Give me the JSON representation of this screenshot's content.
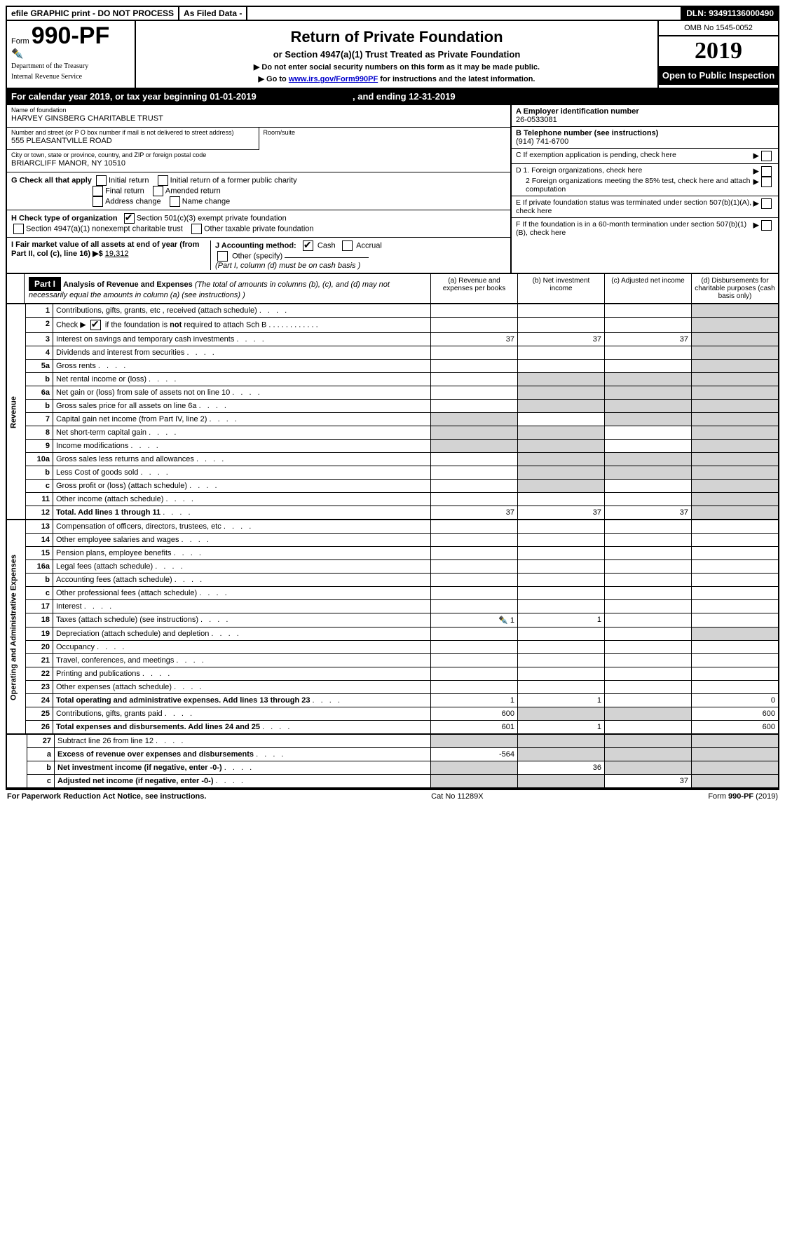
{
  "topbar": {
    "efile": "efile GRAPHIC print - DO NOT PROCESS",
    "asfiled": "As Filed Data -",
    "dln_label": "DLN:",
    "dln": "93491136000490"
  },
  "header": {
    "form_label": "Form",
    "form_no": "990-PF",
    "dept1": "Department of the Treasury",
    "dept2": "Internal Revenue Service",
    "title": "Return of Private Foundation",
    "sub": "or Section 4947(a)(1) Trust Treated as Private Foundation",
    "note1": "▶ Do not enter social security numbers on this form as it may be made public.",
    "note2_pre": "▶ Go to ",
    "note2_link": "www.irs.gov/Form990PF",
    "note2_post": " for instructions and the latest information.",
    "omb": "OMB No 1545-0052",
    "year": "2019",
    "open": "Open to Public Inspection"
  },
  "cy": {
    "text_a": "For calendar year 2019, or tax year beginning ",
    "begin": "01-01-2019",
    "text_b": " , and ending ",
    "end": "12-31-2019"
  },
  "info": {
    "name_label": "Name of foundation",
    "name": "HARVEY GINSBERG CHARITABLE TRUST",
    "street_label": "Number and street (or P O  box number if mail is not delivered to street address)",
    "street": "555 PLEASANTVILLE ROAD",
    "room_label": "Room/suite",
    "city_label": "City or town, state or province, country, and ZIP or foreign postal code",
    "city": "BRIARCLIFF MANOR, NY  10510",
    "ein_label": "A Employer identification number",
    "ein": "26-0533081",
    "tel_label": "B Telephone number (see instructions)",
    "tel": "(914) 741-6700",
    "c_label": "C If exemption application is pending, check here",
    "d1": "D 1. Foreign organizations, check here",
    "d2": "2 Foreign organizations meeting the 85% test, check here and attach computation",
    "e": "E  If private foundation status was terminated under section 507(b)(1)(A), check here",
    "f": "F  If the foundation is in a 60-month termination under section 507(b)(1)(B), check here",
    "g": "G Check all that apply",
    "g_opts": [
      "Initial return",
      "Initial return of a former public charity",
      "Final return",
      "Amended return",
      "Address change",
      "Name change"
    ],
    "h": "H Check type of organization",
    "h1": "Section 501(c)(3) exempt private foundation",
    "h2": "Section 4947(a)(1) nonexempt charitable trust",
    "h3": "Other taxable private foundation",
    "i_label": "I Fair market value of all assets at end of year (from Part II, col  (c), line 16) ▶$",
    "i_val": "19,312",
    "j_label": "J Accounting method:",
    "j_cash": "Cash",
    "j_accrual": "Accrual",
    "j_other": "Other (specify)",
    "j_note": "(Part I, column (d) must be on cash basis )"
  },
  "part1": {
    "head": "Part I",
    "title": "Analysis of Revenue and Expenses",
    "title_note": " (The total of amounts in columns (b), (c), and (d) may not necessarily equal the amounts in column (a) (see instructions) )",
    "col_a": "(a)    Revenue and expenses per books",
    "col_b": "(b)    Net investment income",
    "col_c": "(c)    Adjusted net income",
    "col_d": "(d)    Disbursements for charitable purposes (cash basis only)"
  },
  "sections": {
    "revenue": "Revenue",
    "expenses": "Operating and Administrative Expenses"
  },
  "rows": [
    {
      "n": "1",
      "desc": "Contributions, gifts, grants, etc , received (attach schedule)",
      "a": "",
      "b": "",
      "c": "",
      "d": "",
      "d_grey": true
    },
    {
      "n": "2",
      "desc": "Check ▶ ☑ if the foundation is not required to attach Sch  B",
      "nobind": true,
      "d_grey": true
    },
    {
      "n": "3",
      "desc": "Interest on savings and temporary cash investments",
      "a": "37",
      "b": "37",
      "c": "37",
      "d": "",
      "d_grey": true
    },
    {
      "n": "4",
      "desc": "Dividends and interest from securities",
      "a": "",
      "b": "",
      "c": "",
      "d": "",
      "d_grey": true
    },
    {
      "n": "5a",
      "desc": "Gross rents",
      "a": "",
      "b": "",
      "c": "",
      "d": "",
      "d_grey": true
    },
    {
      "n": "b",
      "desc": "Net rental income or (loss)",
      "a": "",
      "b": "",
      "c": "",
      "d": "",
      "bcd_grey": true
    },
    {
      "n": "6a",
      "desc": "Net gain or (loss) from sale of assets not on line 10",
      "a": "",
      "b": "",
      "c": "",
      "d": "",
      "bcd_grey": true
    },
    {
      "n": "b",
      "desc": "Gross sales price for all assets on line 6a",
      "a": "",
      "b": "",
      "c": "",
      "d": "",
      "bcd_grey": true
    },
    {
      "n": "7",
      "desc": "Capital gain net income (from Part IV, line 2)",
      "a": "",
      "b": "",
      "c": "",
      "d": "",
      "a_grey": true,
      "cd_grey": true
    },
    {
      "n": "8",
      "desc": "Net short-term capital gain",
      "a": "",
      "b": "",
      "c": "",
      "d": "",
      "ab_grey": true,
      "d_grey": true
    },
    {
      "n": "9",
      "desc": "Income modifications",
      "a": "",
      "b": "",
      "c": "",
      "d": "",
      "ab_grey": true,
      "d_grey": true
    },
    {
      "n": "10a",
      "desc": "Gross sales less returns and allowances",
      "a": "",
      "b": "",
      "c": "",
      "d": "",
      "bcd_grey": true
    },
    {
      "n": "b",
      "desc": "Less  Cost of goods sold",
      "a": "",
      "b": "",
      "c": "",
      "d": "",
      "bcd_grey": true
    },
    {
      "n": "c",
      "desc": "Gross profit or (loss) (attach schedule)",
      "a": "",
      "b": "",
      "c": "",
      "d": "",
      "b_grey": true,
      "d_grey": true
    },
    {
      "n": "11",
      "desc": "Other income (attach schedule)",
      "a": "",
      "b": "",
      "c": "",
      "d": "",
      "d_grey": true
    },
    {
      "n": "12",
      "desc": "Total. Add lines 1 through 11",
      "bold": true,
      "a": "37",
      "b": "37",
      "c": "37",
      "d": "",
      "d_grey": true
    }
  ],
  "exp_rows": [
    {
      "n": "13",
      "desc": "Compensation of officers, directors, trustees, etc"
    },
    {
      "n": "14",
      "desc": "Other employee salaries and wages"
    },
    {
      "n": "15",
      "desc": "Pension plans, employee benefits"
    },
    {
      "n": "16a",
      "desc": "Legal fees (attach schedule)"
    },
    {
      "n": "b",
      "desc": "Accounting fees (attach schedule)"
    },
    {
      "n": "c",
      "desc": "Other professional fees (attach schedule)"
    },
    {
      "n": "17",
      "desc": "Interest"
    },
    {
      "n": "18",
      "desc": "Taxes (attach schedule) (see instructions)",
      "a": "1",
      "b": "1",
      "icon": true
    },
    {
      "n": "19",
      "desc": "Depreciation (attach schedule) and depletion",
      "d_grey": true
    },
    {
      "n": "20",
      "desc": "Occupancy"
    },
    {
      "n": "21",
      "desc": "Travel, conferences, and meetings"
    },
    {
      "n": "22",
      "desc": "Printing and publications"
    },
    {
      "n": "23",
      "desc": "Other expenses (attach schedule)"
    },
    {
      "n": "24",
      "desc": "Total operating and administrative expenses. Add lines 13 through 23",
      "bold": true,
      "a": "1",
      "b": "1",
      "c": "",
      "d": "0"
    },
    {
      "n": "25",
      "desc": "Contributions, gifts, grants paid",
      "a": "600",
      "b": "",
      "c": "",
      "d": "600",
      "bc_grey": true
    },
    {
      "n": "26",
      "desc": "Total expenses and disbursements. Add lines 24 and 25",
      "bold": true,
      "a": "601",
      "b": "1",
      "c": "",
      "d": "600"
    }
  ],
  "net_rows": [
    {
      "n": "27",
      "desc": "Subtract line 26 from line 12",
      "all_grey": true
    },
    {
      "n": "a",
      "desc": "Excess of revenue over expenses and disbursements",
      "bold": true,
      "a": "-564",
      "bcd_grey": true
    },
    {
      "n": "b",
      "desc": "Net investment income (if negative, enter -0-)",
      "bold": true,
      "b": "36",
      "a_grey": true,
      "cd_grey": true
    },
    {
      "n": "c",
      "desc": "Adjusted net income (if negative, enter -0-)",
      "bold": true,
      "c": "37",
      "ab_grey": true,
      "d_grey": true
    }
  ],
  "footer": {
    "left": "For Paperwork Reduction Act Notice, see instructions.",
    "mid": "Cat  No  11289X",
    "right": "Form 990-PF (2019)"
  }
}
